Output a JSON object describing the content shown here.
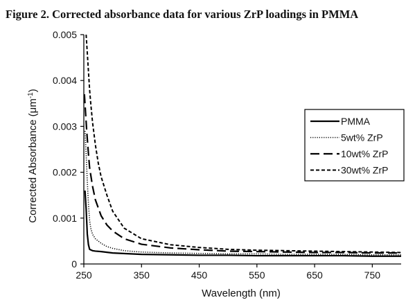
{
  "figure_title": "Figure 2. Corrected absorbance data for various ZrP loadings in PMMA",
  "chart_data": {
    "type": "line",
    "title": "Figure 2. Corrected absorbance data for various ZrP loadings in PMMA",
    "xlabel": "Wavelength (nm)",
    "ylabel_main": "Corrected Absorbance (μm",
    "ylabel_sup": "-1",
    "ylabel_end": ")",
    "xlim": [
      250,
      800
    ],
    "ylim": [
      0,
      0.005
    ],
    "x_ticks": [
      250,
      350,
      450,
      550,
      650,
      750
    ],
    "x_tick_labels": [
      "250",
      "350",
      "450",
      "550",
      "650",
      "750"
    ],
    "y_ticks": [
      0,
      0.001,
      0.002,
      0.003,
      0.004,
      0.005
    ],
    "y_tick_labels": [
      "0",
      "0.001",
      "0.002",
      "0.003",
      "0.004",
      "0.005"
    ],
    "grid": false,
    "legend_position": "right",
    "series": [
      {
        "name": "PMMA",
        "line_style": "solid",
        "color": "#000000",
        "x": [
          252,
          254,
          256,
          258,
          260,
          265,
          270,
          280,
          300,
          350,
          400,
          450,
          500,
          550,
          600,
          650,
          700,
          750,
          800
        ],
        "y": [
          0.0016,
          0.0012,
          0.00065,
          0.00042,
          0.00032,
          0.00029,
          0.00028,
          0.00027,
          0.00024,
          0.00021,
          0.0002,
          0.00019,
          0.00019,
          0.00018,
          0.00018,
          0.00018,
          0.00018,
          0.00017,
          0.00017
        ]
      },
      {
        "name": "5wt% ZrP",
        "line_style": "dotted",
        "color": "#000000",
        "x": [
          252,
          254,
          256,
          258,
          260,
          262,
          265,
          270,
          280,
          290,
          300,
          320,
          350,
          400,
          450,
          500,
          550,
          600,
          650,
          700,
          750,
          800
        ],
        "y": [
          0.0029,
          0.0024,
          0.0018,
          0.0013,
          0.00095,
          0.00078,
          0.00065,
          0.00055,
          0.00045,
          0.00038,
          0.00034,
          0.00029,
          0.00026,
          0.00024,
          0.00023,
          0.00022,
          0.00022,
          0.00021,
          0.00021,
          0.00021,
          0.0002,
          0.0002
        ]
      },
      {
        "name": "10wt% ZrP",
        "line_style": "long-dash",
        "color": "#000000",
        "x": [
          251,
          253,
          255,
          258,
          260,
          265,
          270,
          280,
          290,
          300,
          320,
          350,
          400,
          450,
          500,
          550,
          600,
          650,
          700,
          750,
          800
        ],
        "y": [
          0.0037,
          0.0033,
          0.0029,
          0.0024,
          0.0021,
          0.0017,
          0.0014,
          0.00105,
          0.00085,
          0.00072,
          0.00055,
          0.00043,
          0.00035,
          0.00031,
          0.00028,
          0.00027,
          0.00026,
          0.00025,
          0.00025,
          0.00024,
          0.00024
        ]
      },
      {
        "name": "30wt% ZrP",
        "line_style": "short-dash",
        "color": "#000000",
        "x": [
          254,
          256,
          258,
          260,
          262,
          265,
          270,
          275,
          280,
          290,
          300,
          320,
          350,
          400,
          450,
          500,
          550,
          600,
          650,
          700,
          750,
          800
        ],
        "y": [
          0.005,
          0.0046,
          0.0042,
          0.0038,
          0.0035,
          0.0031,
          0.0026,
          0.0022,
          0.0019,
          0.0015,
          0.00115,
          0.00078,
          0.00055,
          0.00042,
          0.00036,
          0.00032,
          0.0003,
          0.00029,
          0.00028,
          0.00027,
          0.00026,
          0.00025
        ]
      }
    ]
  }
}
